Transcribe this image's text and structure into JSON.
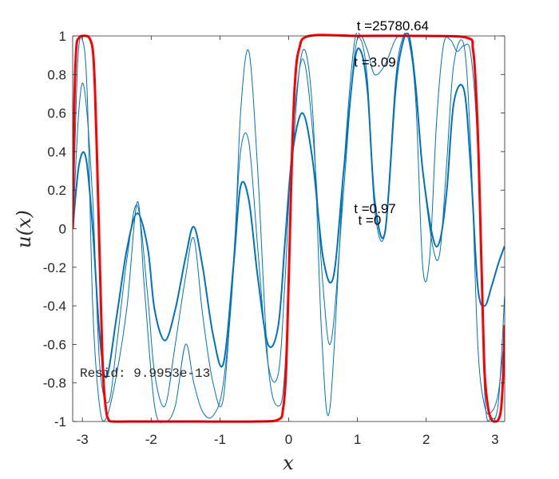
{
  "chart_data": {
    "type": "line",
    "title": "",
    "xlabel": "x",
    "ylabel": "u(x)",
    "xlim": [
      -3.14159,
      3.14159
    ],
    "ylim": [
      -1,
      1
    ],
    "xticks": [
      -3,
      -2,
      -1,
      0,
      1,
      2,
      3
    ],
    "yticks": [
      -1,
      -0.8,
      -0.6,
      -0.4,
      -0.2,
      0,
      0.2,
      0.4,
      0.6,
      0.8,
      1
    ],
    "grid": false,
    "series": [
      {
        "name": "t=0",
        "color": "#0072bd",
        "width": 2,
        "x": [
          -3.14,
          -3.05,
          -2.95,
          -2.85,
          -2.75,
          -2.65,
          -2.5,
          -2.35,
          -2.2,
          -2.05,
          -1.95,
          -1.8,
          -1.65,
          -1.5,
          -1.38,
          -1.25,
          -1.1,
          -0.95,
          -0.8,
          -0.7,
          -0.58,
          -0.45,
          -0.3,
          -0.15,
          -0.05,
          0.05,
          0.2,
          0.35,
          0.5,
          0.65,
          0.8,
          0.95,
          1.05,
          1.15,
          1.25,
          1.4,
          1.55,
          1.65,
          1.75,
          1.85,
          1.95,
          2.1,
          2.2,
          2.3,
          2.4,
          2.55,
          2.65,
          2.75,
          2.85,
          2.95,
          3.05,
          3.14
        ],
        "y": [
          0.0,
          0.33,
          0.37,
          0.0,
          -0.55,
          -0.77,
          -0.45,
          -0.1,
          0.08,
          -0.1,
          -0.42,
          -0.58,
          -0.42,
          -0.15,
          0.01,
          -0.2,
          -0.55,
          -0.7,
          -0.18,
          0.22,
          0.15,
          -0.25,
          -0.6,
          -0.5,
          -0.05,
          0.38,
          0.6,
          0.35,
          -0.15,
          -0.25,
          0.3,
          0.85,
          0.92,
          0.7,
          0.15,
          -0.02,
          0.7,
          0.95,
          1.0,
          0.72,
          0.3,
          -0.05,
          -0.06,
          0.2,
          0.65,
          0.72,
          0.3,
          -0.3,
          -0.4,
          -0.3,
          -0.18,
          -0.09
        ]
      },
      {
        "name": "t=0.97",
        "color": "#0072bd",
        "width": 1,
        "x": [
          -3.14,
          -3.05,
          -2.97,
          -2.85,
          -2.75,
          -2.62,
          -2.5,
          -2.35,
          -2.2,
          -2.05,
          -1.95,
          -1.8,
          -1.65,
          -1.5,
          -1.38,
          -1.25,
          -1.1,
          -0.95,
          -0.8,
          -0.7,
          -0.58,
          -0.45,
          -0.3,
          -0.15,
          -0.05,
          0.05,
          0.2,
          0.35,
          0.5,
          0.62,
          0.8,
          0.95,
          1.05,
          1.15,
          1.25,
          1.4,
          1.55,
          1.65,
          1.75,
          1.85,
          1.95,
          2.1,
          2.2,
          2.3,
          2.4,
          2.55,
          2.65,
          2.75,
          2.85,
          2.95,
          3.05,
          3.14
        ],
        "y": [
          0.0,
          0.62,
          0.72,
          0.15,
          -0.7,
          -0.9,
          -0.6,
          -0.15,
          0.12,
          -0.35,
          -0.75,
          -0.92,
          -0.6,
          -0.25,
          -0.05,
          -0.45,
          -0.8,
          -0.88,
          -0.15,
          0.4,
          0.45,
          -0.1,
          -0.7,
          -0.75,
          -0.25,
          0.45,
          0.88,
          0.5,
          -0.3,
          -0.58,
          0.2,
          0.88,
          0.98,
          0.75,
          0.1,
          -0.02,
          0.75,
          0.98,
          1.0,
          0.75,
          0.3,
          -0.1,
          -0.12,
          0.35,
          0.85,
          0.95,
          0.4,
          -0.6,
          -0.92,
          -0.95,
          -0.85,
          -0.55
        ]
      },
      {
        "name": "t=3.09",
        "color": "#0072bd",
        "width": 1,
        "x": [
          -3.14,
          -3.07,
          -3.0,
          -2.93,
          -2.85,
          -2.75,
          -2.65,
          -2.5,
          -2.35,
          -2.2,
          -2.1,
          -1.95,
          -1.8,
          -1.65,
          -1.5,
          -1.38,
          -1.25,
          -1.1,
          -0.95,
          -0.8,
          -0.7,
          -0.58,
          -0.45,
          -0.3,
          -0.15,
          -0.05,
          0.05,
          0.2,
          0.35,
          0.48,
          0.6,
          0.8,
          0.95,
          1.05,
          1.15,
          1.25,
          1.4,
          1.55,
          1.65,
          1.75,
          1.85,
          1.95,
          2.05,
          2.15,
          2.25,
          2.35,
          2.45,
          2.55,
          2.65,
          2.75,
          2.85,
          2.95,
          3.05,
          3.14
        ],
        "y": [
          0.0,
          0.85,
          0.98,
          0.7,
          -0.4,
          -0.92,
          -0.98,
          -0.75,
          -0.4,
          0.14,
          -0.3,
          -0.92,
          -1.0,
          -0.92,
          -0.6,
          -0.8,
          -0.95,
          -0.97,
          -0.8,
          -0.2,
          0.6,
          0.92,
          0.3,
          -0.7,
          -0.92,
          -0.7,
          0.3,
          0.92,
          0.6,
          -0.55,
          -0.93,
          0.3,
          0.95,
          1.0,
          0.92,
          0.8,
          0.85,
          0.98,
          1.0,
          0.97,
          0.65,
          -0.2,
          -0.15,
          0.55,
          0.95,
          0.98,
          0.92,
          0.95,
          0.9,
          0.4,
          -0.85,
          -0.98,
          -0.9,
          -0.35
        ]
      },
      {
        "name": "t=25780.64",
        "color": "#ff0000",
        "width": 3,
        "x": [
          -3.14,
          -3.12,
          -3.09,
          -3.05,
          -3.0,
          -2.95,
          -2.9,
          -2.85,
          -2.82,
          -2.79,
          -2.76,
          -2.73,
          -2.7,
          -2.66,
          -2.62,
          -2.55,
          -2.3,
          -1.5,
          -0.5,
          -0.15,
          -0.08,
          -0.04,
          -0.01,
          0.02,
          0.05,
          0.09,
          0.15,
          0.3,
          1.0,
          2.0,
          2.6,
          2.68,
          2.72,
          2.76,
          2.79,
          2.82,
          2.85,
          2.9,
          2.95,
          3.0,
          3.05,
          3.09,
          3.12,
          3.14
        ],
        "y": [
          0.0,
          0.6,
          0.93,
          0.99,
          1.0,
          1.0,
          0.99,
          0.93,
          0.75,
          0.4,
          0.0,
          -0.4,
          -0.75,
          -0.93,
          -0.99,
          -1.0,
          -1.0,
          -1.0,
          -1.0,
          -0.99,
          -0.93,
          -0.75,
          -0.4,
          0.0,
          0.4,
          0.75,
          0.93,
          1.0,
          1.0,
          1.0,
          0.99,
          0.93,
          0.75,
          0.4,
          0.0,
          -0.4,
          -0.75,
          -0.93,
          -0.99,
          -1.0,
          -0.99,
          -0.93,
          -0.75,
          -0.5
        ]
      }
    ],
    "annotations": [
      {
        "text": "t =25780.64",
        "x": 0.99,
        "y": 1.03
      },
      {
        "text": "t =3.09",
        "x": 0.95,
        "y": 0.84
      },
      {
        "text": "t =0.97",
        "x": 0.95,
        "y": 0.08
      },
      {
        "text": "t =0",
        "x": 1.01,
        "y": 0.02
      }
    ],
    "resid_label": "Resid: 9.9953e-13"
  }
}
